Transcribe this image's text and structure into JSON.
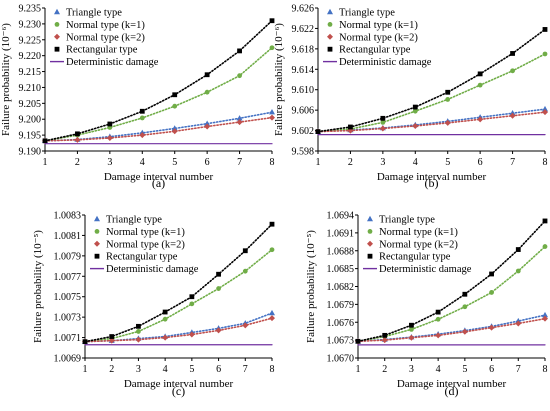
{
  "figure": {
    "panels": [
      "(a)",
      "(b)",
      "(c)",
      "(d)"
    ]
  },
  "styles": {
    "series_colors": [
      "#4472C4",
      "#70AD47",
      "#C0504D",
      "#000000",
      "#7030A0"
    ],
    "series_markers": [
      "triangle",
      "circle",
      "diamond",
      "square",
      "none"
    ]
  },
  "chart_data": [
    {
      "type": "line",
      "panel_label": "(a)",
      "xlabel": "Damage interval number",
      "ylabel": "Failure probability (10⁻⁶)",
      "x": [
        1,
        2,
        3,
        4,
        5,
        6,
        7,
        8
      ],
      "xlim": [
        1,
        8
      ],
      "ylim": [
        9.19,
        9.235
      ],
      "yticks": [
        "9.190",
        "9.195",
        "9.200",
        "9.205",
        "9.210",
        "9.215",
        "9.220",
        "9.225",
        "9.230",
        "9.235"
      ],
      "legend_position": "top-left",
      "series": [
        {
          "name": "Triangle type",
          "values": [
            9.1932,
            9.1936,
            9.1945,
            9.1957,
            9.1971,
            9.1986,
            9.2003,
            9.2022
          ]
        },
        {
          "name": "Normal type (k=1)",
          "values": [
            9.1932,
            9.195,
            9.1974,
            9.2004,
            9.2041,
            9.2085,
            9.2137,
            9.2225
          ]
        },
        {
          "name": "Normal type (k=2)",
          "values": [
            9.1932,
            9.1935,
            9.1941,
            9.195,
            9.1962,
            9.1977,
            9.1991,
            9.2005
          ]
        },
        {
          "name": "Rectangular type",
          "values": [
            9.1932,
            9.1954,
            9.1985,
            9.2025,
            9.2077,
            9.214,
            9.2215,
            9.231
          ]
        },
        {
          "name": "Deterministic damage",
          "values": [
            9.1923,
            9.1923,
            9.1923,
            9.1923,
            9.1923,
            9.1923,
            9.1923,
            9.1923
          ]
        }
      ]
    },
    {
      "type": "line",
      "panel_label": "(b)",
      "xlabel": "Damage interval number",
      "ylabel": "Failure probability (10⁻⁶)",
      "x": [
        1,
        2,
        3,
        4,
        5,
        6,
        7,
        8
      ],
      "xlim": [
        1,
        8
      ],
      "ylim": [
        9.598,
        9.626
      ],
      "yticks": [
        "9.598",
        "9.602",
        "9.606",
        "9.610",
        "9.614",
        "9.618",
        "9.622",
        "9.626"
      ],
      "legend_position": "top-left",
      "series": [
        {
          "name": "Triangle type",
          "values": [
            9.6018,
            9.6021,
            9.6025,
            9.6031,
            9.6038,
            9.6046,
            9.6054,
            9.6062
          ]
        },
        {
          "name": "Normal type (k=1)",
          "values": [
            9.6018,
            9.6023,
            9.6036,
            9.6058,
            9.6081,
            9.6109,
            9.6137,
            9.617
          ]
        },
        {
          "name": "Normal type (k=2)",
          "values": [
            9.6018,
            9.602,
            9.6024,
            9.6029,
            9.6035,
            9.6042,
            9.6049,
            9.6056
          ]
        },
        {
          "name": "Rectangular type",
          "values": [
            9.6018,
            9.6027,
            9.6044,
            9.6066,
            9.6095,
            9.6131,
            9.6171,
            9.6218
          ]
        },
        {
          "name": "Deterministic damage",
          "values": [
            9.6012,
            9.6012,
            9.6012,
            9.6012,
            9.6012,
            9.6012,
            9.6012,
            9.6012
          ]
        }
      ]
    },
    {
      "type": "line",
      "panel_label": "(c)",
      "xlabel": "Damage interval number",
      "ylabel": "Failure probability (10⁻⁵)",
      "x": [
        1,
        2,
        3,
        4,
        5,
        6,
        7,
        8
      ],
      "xlim": [
        1,
        8
      ],
      "ylim": [
        1.0069,
        1.0083
      ],
      "yticks": [
        "1.0069",
        "1.0071",
        "1.0073",
        "1.0075",
        "1.0077",
        "1.0079",
        "1.0081",
        "1.0083"
      ],
      "legend_position": "top-left",
      "series": [
        {
          "name": "Triangle type",
          "values": [
            1.00706,
            1.00707,
            1.00709,
            1.00711,
            1.00715,
            1.00719,
            1.00724,
            1.00734
          ]
        },
        {
          "name": "Normal type (k=1)",
          "values": [
            1.00706,
            1.00709,
            1.00716,
            1.00728,
            1.00743,
            1.00758,
            1.00775,
            1.00796
          ]
        },
        {
          "name": "Normal type (k=2)",
          "values": [
            1.00706,
            1.00707,
            1.00708,
            1.0071,
            1.00713,
            1.00717,
            1.00722,
            1.00729
          ]
        },
        {
          "name": "Rectangular type",
          "values": [
            1.00706,
            1.00711,
            1.00721,
            1.00735,
            1.0075,
            1.00772,
            1.00795,
            1.00821
          ]
        },
        {
          "name": "Deterministic damage",
          "values": [
            1.00703,
            1.00703,
            1.00703,
            1.00703,
            1.00703,
            1.00703,
            1.00703,
            1.00703
          ]
        }
      ]
    },
    {
      "type": "line",
      "panel_label": "(d)",
      "xlabel": "Damage interval number",
      "ylabel": "Failure probability (10⁻⁵)",
      "x": [
        1,
        2,
        3,
        4,
        5,
        6,
        7,
        8
      ],
      "xlim": [
        1,
        8
      ],
      "ylim": [
        1.067,
        1.0694
      ],
      "yticks": [
        "1.0670",
        "1.0673",
        "1.0676",
        "1.0679",
        "1.0682",
        "1.0685",
        "1.0688",
        "1.0691",
        "1.0694"
      ],
      "legend_position": "top-left",
      "series": [
        {
          "name": "Triangle type",
          "values": [
            1.06728,
            1.06731,
            1.06735,
            1.0674,
            1.06746,
            1.06753,
            1.06762,
            1.06772
          ]
        },
        {
          "name": "Normal type (k=1)",
          "values": [
            1.06728,
            1.06736,
            1.06748,
            1.06765,
            1.06786,
            1.0681,
            1.06846,
            1.06887
          ]
        },
        {
          "name": "Normal type (k=2)",
          "values": [
            1.06728,
            1.0673,
            1.06734,
            1.06738,
            1.06744,
            1.06751,
            1.06758,
            1.06766
          ]
        },
        {
          "name": "Rectangular type",
          "values": [
            1.06728,
            1.06738,
            1.06755,
            1.06777,
            1.06807,
            1.06841,
            1.06882,
            1.0693
          ]
        },
        {
          "name": "Deterministic damage",
          "values": [
            1.06722,
            1.06722,
            1.06722,
            1.06722,
            1.06722,
            1.06722,
            1.06722,
            1.06722
          ]
        }
      ]
    }
  ]
}
